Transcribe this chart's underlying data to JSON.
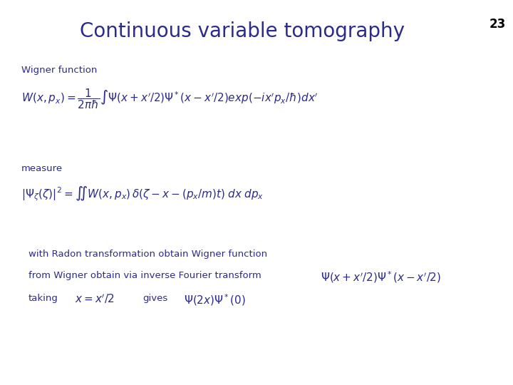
{
  "title": "Continuous variable tomography",
  "title_color": "#2B2B8B",
  "title_fontsize": 20,
  "slide_number": "23",
  "background_color": "#ffffff",
  "text_color": "#2B2B8B",
  "label_wigner": "Wigner function",
  "label_measure": "measure",
  "line_radon": "with Radon transformation obtain Wigner function",
  "line_fourier_text": "from Wigner obtain via inverse Fourier transform",
  "line_taking_text1": "taking",
  "line_taking_text2": "gives"
}
